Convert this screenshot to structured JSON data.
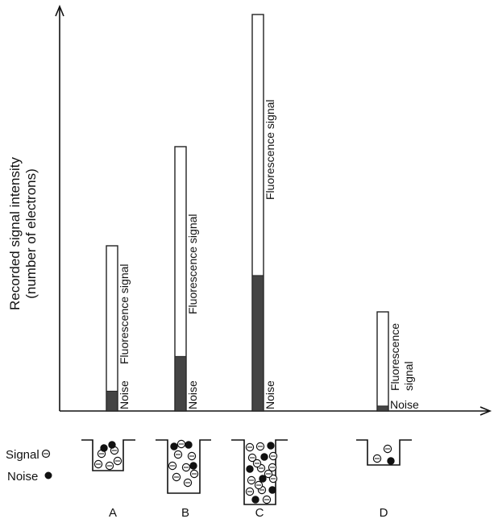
{
  "axes": {
    "y_label_line1": "Recorded signal intensity",
    "y_label_line2": "(number of electrons)"
  },
  "legend": {
    "signal_label": "Signal",
    "noise_label": "Noise"
  },
  "columns": [
    {
      "id": "A",
      "label": "A",
      "total": 100,
      "noise": 12,
      "noise_label": "Noise",
      "fluorescence_lines": [
        "Fluorescence signal"
      ],
      "signal_dots": 5,
      "noise_dots": 2
    },
    {
      "id": "B",
      "label": "B",
      "total": 160,
      "noise": 33,
      "noise_label": "Noise",
      "fluorescence_lines": [
        "Fluorescence signal"
      ],
      "signal_dots": 8,
      "noise_dots": 3
    },
    {
      "id": "C",
      "label": "C",
      "total": 240,
      "noise": 82,
      "noise_label": "Noise",
      "fluorescence_lines": [
        "Fluorescence signal"
      ],
      "signal_dots": 14,
      "noise_dots": 6
    },
    {
      "id": "D",
      "label": "D",
      "total": 60,
      "noise": 3,
      "noise_label": "Noise",
      "fluorescence_lines": [
        "Fluorescence",
        "signal"
      ],
      "signal_dots": 2,
      "noise_dots": 1
    }
  ],
  "colors": {
    "noise_fill": "#444444",
    "bar_outline": "#222222"
  }
}
